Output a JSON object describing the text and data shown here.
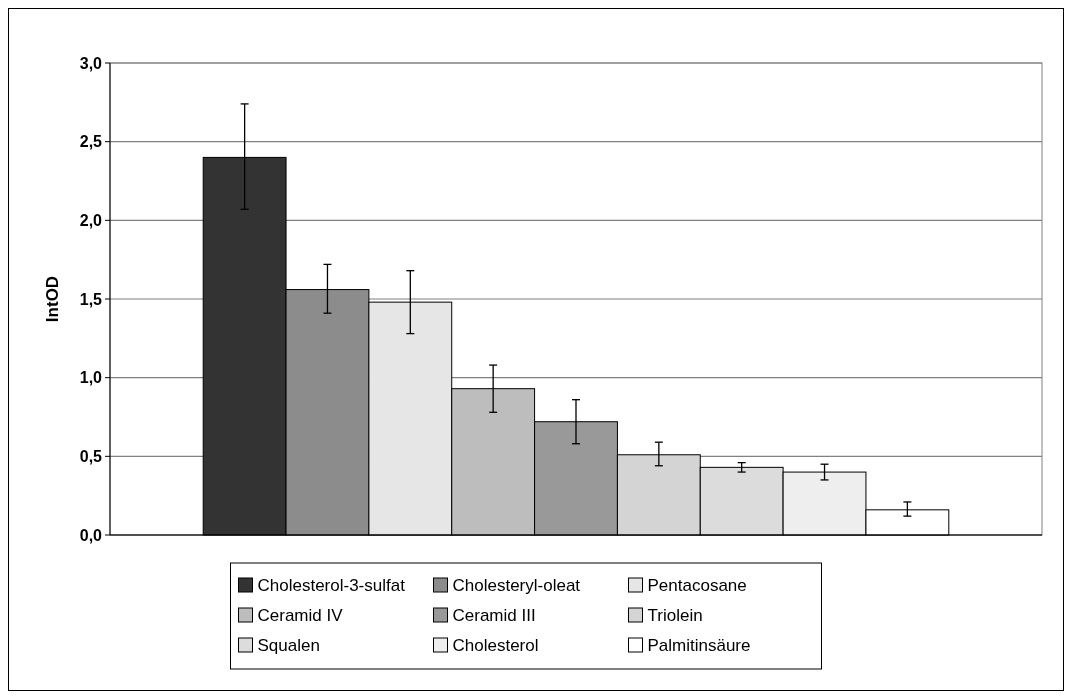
{
  "chart_data": {
    "type": "bar",
    "ylabel": "IntOD",
    "categories": [
      null
    ],
    "ylim": [
      0,
      3
    ],
    "yticks": [
      {
        "value": 0,
        "label": "0,0"
      },
      {
        "value": 0.5,
        "label": "0,5"
      },
      {
        "value": 1,
        "label": "1,0"
      },
      {
        "value": 1.5,
        "label": "1,5"
      },
      {
        "value": 2,
        "label": "2,0"
      },
      {
        "value": 2.5,
        "label": "2,5"
      },
      {
        "value": 3,
        "label": "3,0"
      }
    ],
    "grid": "y",
    "legend": "bottom",
    "series": [
      {
        "name": "Cholesterol-3-sulfat",
        "color": "#333333",
        "values": [
          2.4
        ],
        "errors": [
          [
            2.07,
            2.74
          ]
        ]
      },
      {
        "name": "Cholesteryl-oleat",
        "color": "#8c8c8c",
        "values": [
          1.56
        ],
        "errors": [
          [
            1.41,
            1.72
          ]
        ]
      },
      {
        "name": "Pentacosane",
        "color": "#e6e6e6",
        "values": [
          1.48
        ],
        "errors": [
          [
            1.28,
            1.68
          ]
        ]
      },
      {
        "name": "Ceramid IV",
        "color": "#bdbdbd",
        "values": [
          0.93
        ],
        "errors": [
          [
            0.78,
            1.08
          ]
        ]
      },
      {
        "name": "Ceramid III",
        "color": "#999999",
        "values": [
          0.72
        ],
        "errors": [
          [
            0.58,
            0.86
          ]
        ]
      },
      {
        "name": "Triolein",
        "color": "#d4d4d4",
        "values": [
          0.51
        ],
        "errors": [
          [
            0.44,
            0.59
          ]
        ]
      },
      {
        "name": "Squalen",
        "color": "#dcdcdc",
        "values": [
          0.43
        ],
        "errors": [
          [
            0.4,
            0.46
          ]
        ]
      },
      {
        "name": "Cholesterol",
        "color": "#eeeeee",
        "values": [
          0.4
        ],
        "errors": [
          [
            0.35,
            0.45
          ]
        ]
      },
      {
        "name": "Palmitinsäure",
        "color": "#ffffff",
        "values": [
          0.16
        ],
        "errors": [
          [
            0.12,
            0.21
          ]
        ]
      }
    ]
  }
}
